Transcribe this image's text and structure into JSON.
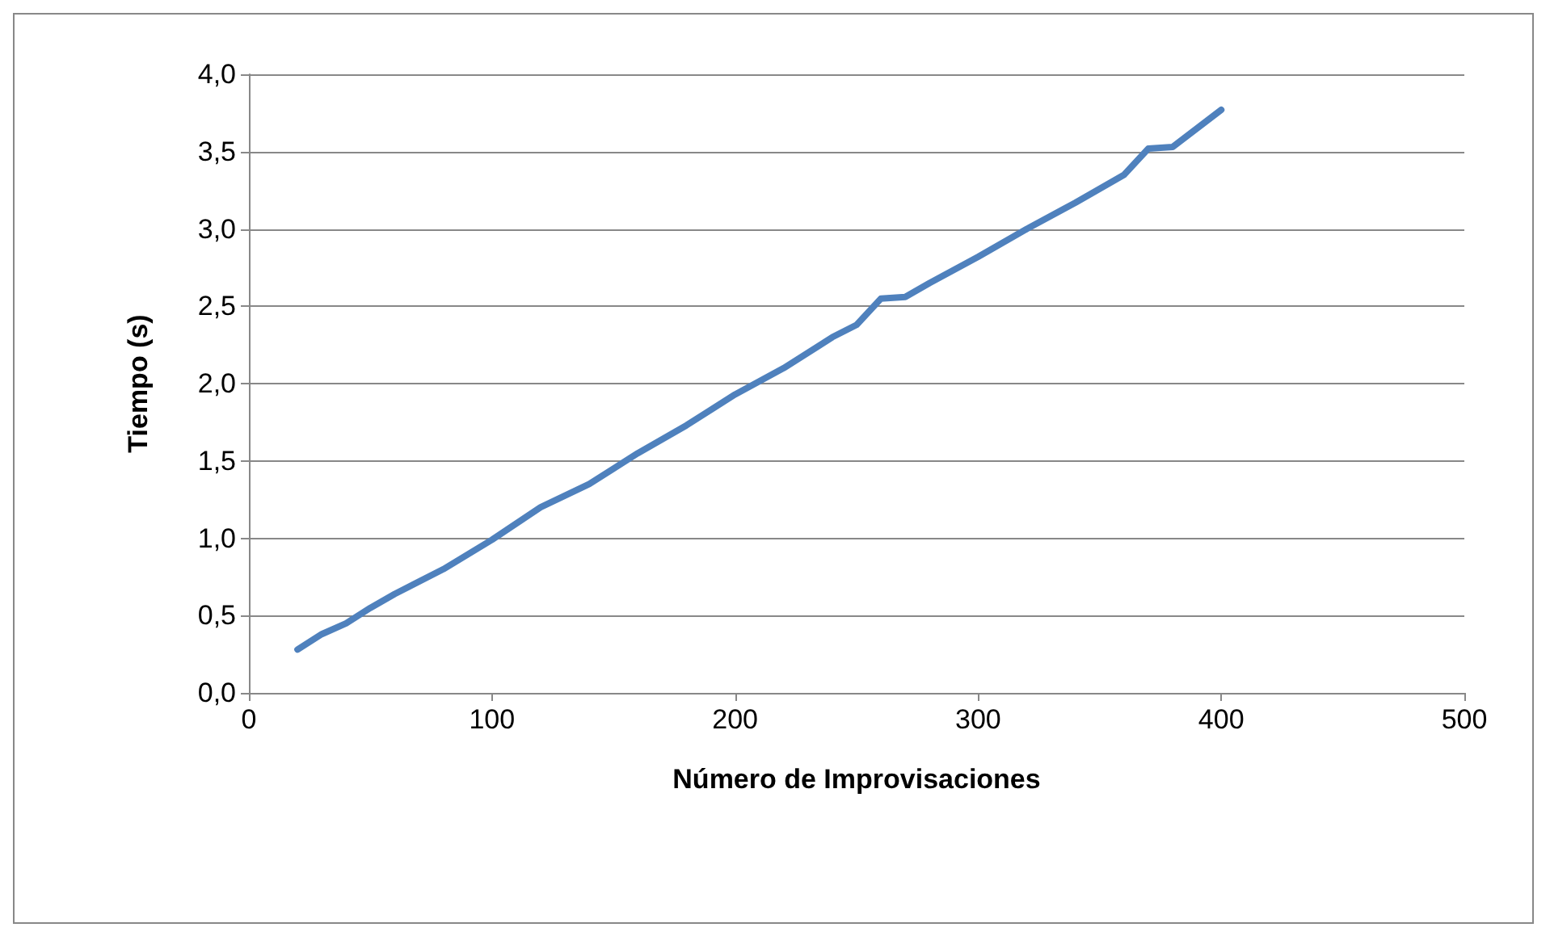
{
  "chart_data": {
    "type": "line",
    "xlabel": "Número de Improvisaciones",
    "ylabel": "Tiempo (s)",
    "x": [
      20,
      30,
      40,
      50,
      60,
      80,
      100,
      120,
      140,
      160,
      180,
      200,
      220,
      240,
      250,
      260,
      270,
      280,
      300,
      320,
      340,
      360,
      370,
      380,
      400
    ],
    "series": [
      {
        "color": "#4f81bd",
        "values": [
          0.28,
          0.38,
          0.45,
          0.55,
          0.64,
          0.8,
          0.99,
          1.2,
          1.35,
          1.55,
          1.73,
          1.93,
          2.1,
          2.3,
          2.38,
          2.55,
          2.56,
          2.65,
          2.82,
          3.0,
          3.17,
          3.35,
          3.52,
          3.53,
          3.77
        ]
      }
    ],
    "xlim": [
      0,
      500
    ],
    "xticks": [
      0,
      100,
      200,
      300,
      400,
      500
    ],
    "ylim": [
      0,
      4
    ],
    "yticks": [
      {
        "value": 0,
        "label": "0,0"
      },
      {
        "value": 0.5,
        "label": "0,5"
      },
      {
        "value": 1,
        "label": "1,0"
      },
      {
        "value": 1.5,
        "label": "1,5"
      },
      {
        "value": 2,
        "label": "2,0"
      },
      {
        "value": 2.5,
        "label": "2,5"
      },
      {
        "value": 3,
        "label": "3,0"
      },
      {
        "value": 3.5,
        "label": "3,5"
      },
      {
        "value": 4,
        "label": "4,0"
      }
    ],
    "grid": "y",
    "marker": "none",
    "line_style": "solid"
  }
}
